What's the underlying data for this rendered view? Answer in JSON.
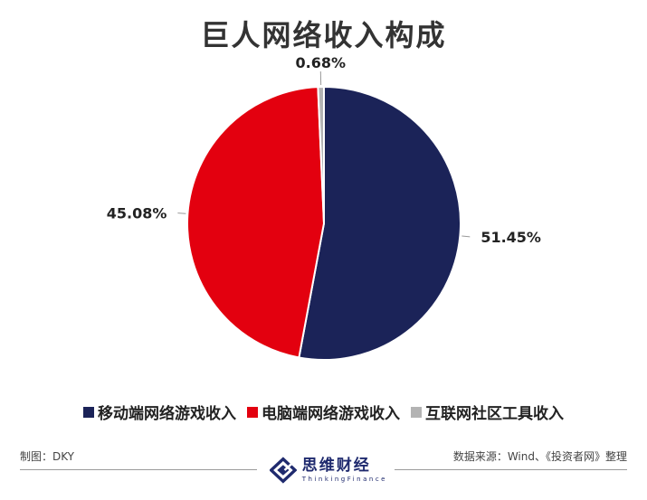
{
  "header": {
    "title": "巨人网络收入构成"
  },
  "chart_data": {
    "type": "pie",
    "title": "巨人网络收入构成",
    "slices": [
      {
        "name": "移动端网络游戏收入",
        "value": 51.45,
        "label": "51.45%",
        "color": "#1b2358"
      },
      {
        "name": "电脑端网络游戏收入",
        "value": 45.08,
        "label": "45.08%",
        "color": "#e3000f"
      },
      {
        "name": "互联网社区工具收入",
        "value": 0.68,
        "label": "0.68%",
        "color": "#b3b3b3"
      }
    ],
    "start_angle_deg": 0,
    "direction": "clockwise",
    "legend_position": "bottom"
  },
  "footer": {
    "author": "制图：DKY",
    "source": "数据来源：Wind、《投资者网》整理",
    "brand_name": "思维财经",
    "brand_sub": "ThinkingFinance"
  }
}
